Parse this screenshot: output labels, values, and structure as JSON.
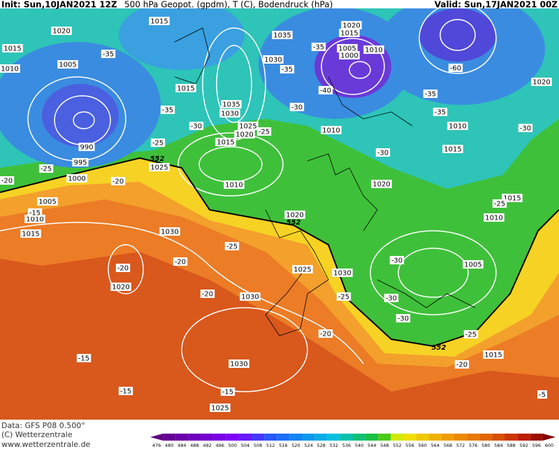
{
  "header": {
    "init": "Init: Sun,10JAN2021 12Z",
    "title": "500 hPa Geopot. (gpdm), T (C), Bodendruck (hPa)",
    "valid": "Valid: Sun,17JAN2021 00Z"
  },
  "footer": {
    "data": "Data: GFS P08 0.500°",
    "copyright": "(C) Wetterzentrale",
    "url": "www.wetterzentrale.de"
  },
  "legend": {
    "values": [
      476,
      480,
      484,
      488,
      492,
      496,
      500,
      504,
      508,
      512,
      516,
      520,
      524,
      528,
      532,
      536,
      540,
      544,
      548,
      552,
      556,
      560,
      564,
      568,
      572,
      576,
      580,
      584,
      588,
      592,
      596,
      600
    ]
  },
  "pressure_labels": [
    "1020",
    "1015",
    "1010",
    "1005",
    "990",
    "995",
    "1000",
    "1005",
    "1010",
    "1015",
    "1015",
    "1015",
    "1035",
    "1030",
    "1025",
    "1020",
    "1015",
    "1025",
    "1010",
    "1030",
    "1035",
    "1020",
    "1015",
    "1005",
    "1000",
    "1010",
    "1010",
    "1015",
    "1010",
    "1020",
    "1020",
    "1020",
    "1015",
    "1010",
    "1005",
    "1030",
    "1020",
    "1025",
    "1030",
    "1030",
    "1030",
    "1025",
    "1015"
  ],
  "temperature_labels": [
    "-35",
    "-35",
    "-30",
    "-25",
    "-25",
    "-20",
    "-20",
    "-15",
    "-35",
    "-35",
    "-40",
    "-30",
    "-25",
    "-30",
    "-60",
    "-35",
    "-35",
    "-30",
    "-25",
    "-25",
    "-20",
    "-20",
    "-20",
    "-25",
    "-30",
    "-30",
    "-30",
    "-20",
    "-25",
    "-20",
    "-15",
    "-15",
    "-15",
    "-5"
  ],
  "height_labels": [
    "552",
    "552",
    "552"
  ]
}
